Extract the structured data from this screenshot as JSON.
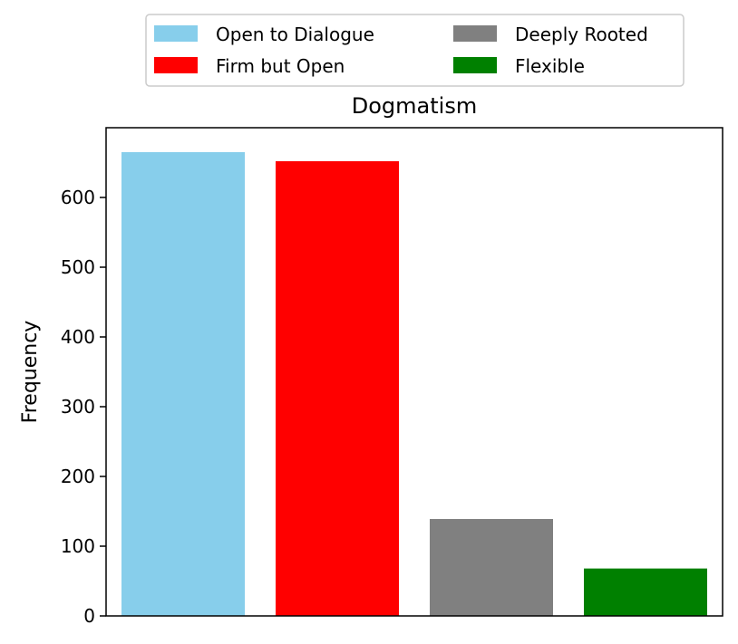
{
  "chart_data": {
    "type": "bar",
    "title": "Dogmatism",
    "xlabel": "",
    "ylabel": "Frequency",
    "ylim": [
      0,
      700
    ],
    "yticks": [
      0,
      100,
      200,
      300,
      400,
      500,
      600
    ],
    "categories": [
      "Open to Dialogue",
      "Firm but Open",
      "Deeply Rooted",
      "Flexible"
    ],
    "values": [
      665,
      652,
      139,
      68
    ],
    "colors": [
      "#87ceeb",
      "#ff0000",
      "#808080",
      "#008000"
    ],
    "grid": false,
    "legend": {
      "placement": "top-center",
      "columns": 2,
      "entries": [
        "Open to Dialogue",
        "Firm but Open",
        "Deeply Rooted",
        "Flexible"
      ]
    }
  }
}
